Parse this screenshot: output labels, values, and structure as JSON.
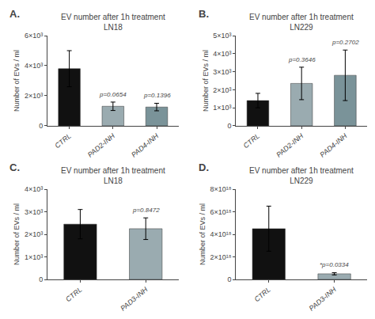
{
  "chart_data": [
    {
      "type": "bar",
      "title": "EV number after 1h treatment\nLN18",
      "panel_label": "A.",
      "categories": [
        "CTRL",
        "PAD2-INH",
        "PAD4-INH"
      ],
      "values": [
        3800,
        1300,
        1250
      ],
      "errors": [
        1200,
        280,
        250
      ],
      "colors": [
        "#111111",
        "#9aabb0",
        "#7a9399"
      ],
      "ylabel": "Number of EVs / ml",
      "ylim": [
        0,
        6000
      ],
      "yticks": [
        0,
        {
          "value": 2000,
          "label": "2×10³"
        },
        {
          "value": 4000,
          "label": "4×10³"
        },
        {
          "value": 6000,
          "label": "6×10³"
        }
      ],
      "annotations": [
        {
          "category": "PAD2-INH",
          "text": "p=0.0654"
        },
        {
          "category": "PAD4-INH",
          "text": "p=0.1396"
        }
      ],
      "grid": false
    },
    {
      "type": "bar",
      "title": "EV number after 1h treatment\nLN229",
      "panel_label": "B.",
      "categories": [
        "CTRL",
        "PAD2-INH",
        "PAD4-INH"
      ],
      "values": [
        1400,
        2350,
        2800
      ],
      "errors": [
        400,
        900,
        1400
      ],
      "colors": [
        "#111111",
        "#9aabb0",
        "#7a9399"
      ],
      "ylabel": "Number of EVs / ml",
      "ylim": [
        0,
        5000
      ],
      "yticks": [
        0,
        {
          "value": 1000,
          "label": "1×10³"
        },
        {
          "value": 2000,
          "label": "2×10³"
        },
        {
          "value": 3000,
          "label": "3×10³"
        },
        {
          "value": 4000,
          "label": "4×10³"
        },
        {
          "value": 5000,
          "label": "5×10³"
        }
      ],
      "annotations": [
        {
          "category": "PAD2-INH",
          "text": "p=0.3646"
        },
        {
          "category": "PAD4-INH",
          "text": "p=0.2702"
        }
      ],
      "grid": false
    },
    {
      "type": "bar",
      "title": "EV number after 1h treatment\nLN18",
      "panel_label": "C.",
      "categories": [
        "CTRL",
        "PAD3-INH"
      ],
      "values": [
        2450,
        2250
      ],
      "errors": [
        650,
        480
      ],
      "colors": [
        "#111111",
        "#9aabb0"
      ],
      "ylabel": "Number of EVs / ml",
      "ylim": [
        0,
        4000
      ],
      "yticks": [
        0,
        {
          "value": 1000,
          "label": "1×10³"
        },
        {
          "value": 2000,
          "label": "2×10³"
        },
        {
          "value": 3000,
          "label": "3×10³"
        },
        {
          "value": 4000,
          "label": "4×10³"
        }
      ],
      "annotations": [
        {
          "category": "PAD3-INH",
          "text": "p=0.8472"
        }
      ],
      "grid": false
    },
    {
      "type": "bar",
      "title": "EV number after 1h treatment\nLN229",
      "panel_label": "D.",
      "categories": [
        "CTRL",
        "PAD3-INH"
      ],
      "values": [
        4.5e+18,
        5e+17
      ],
      "errors": [
        2e+18,
        1e+17
      ],
      "colors": [
        "#111111",
        "#9aabb0"
      ],
      "ylabel": "Number of EVs / ml",
      "ylim": [
        0,
        8e+18
      ],
      "yticks": [
        0,
        {
          "value": 2e+18,
          "label": "2×10¹⁸"
        },
        {
          "value": 4e+18,
          "label": "4×10¹⁸"
        },
        {
          "value": 6e+18,
          "label": "6×10¹⁸"
        },
        {
          "value": 8e+18,
          "label": "8×10¹⁸"
        }
      ],
      "annotations": [
        {
          "category": "PAD3-INH",
          "text": "*p=0.0334"
        }
      ],
      "grid": false
    }
  ]
}
